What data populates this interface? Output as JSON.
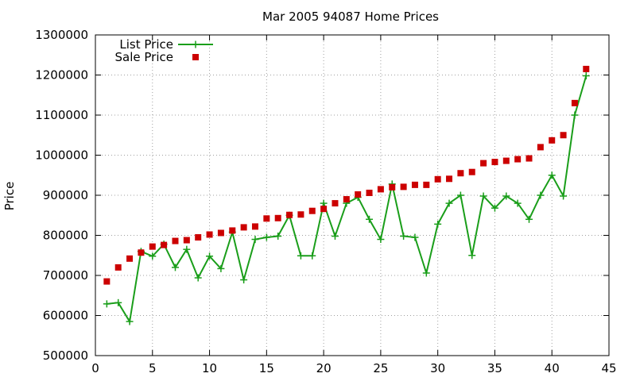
{
  "chart_data": {
    "type": "line",
    "title": "Mar 2005 94087 Home Prices",
    "xlabel": "",
    "ylabel": "Price",
    "xlim": [
      0,
      45
    ],
    "ylim": [
      500000,
      1300000
    ],
    "xticks": [
      0,
      5,
      10,
      15,
      20,
      25,
      30,
      35,
      40,
      45
    ],
    "yticks": [
      500000,
      600000,
      700000,
      800000,
      900000,
      1000000,
      1100000,
      1200000,
      1300000
    ],
    "grid": true,
    "legend_position": "top-left",
    "series": [
      {
        "name": "List Price",
        "style": "linespoints",
        "marker": "plus",
        "color": "#1a9e1a",
        "x": [
          1,
          2,
          3,
          4,
          5,
          6,
          7,
          8,
          9,
          10,
          11,
          12,
          13,
          14,
          15,
          16,
          17,
          18,
          19,
          20,
          21,
          22,
          23,
          24,
          25,
          26,
          27,
          28,
          29,
          30,
          31,
          32,
          33,
          34,
          35,
          36,
          37,
          38,
          39,
          40,
          41,
          42,
          43
        ],
        "y": [
          629000,
          632000,
          585000,
          760000,
          748000,
          778000,
          720000,
          765000,
          694000,
          748000,
          717000,
          808000,
          689000,
          790000,
          795000,
          798000,
          850000,
          749000,
          749000,
          880000,
          798000,
          880000,
          895000,
          840000,
          790000,
          928000,
          798000,
          795000,
          706000,
          828000,
          880000,
          900000,
          750000,
          898000,
          868000,
          898000,
          880000,
          840000,
          900000,
          950000,
          898000,
          1100000,
          1198000
        ]
      },
      {
        "name": "Sale Price",
        "style": "points",
        "marker": "square",
        "color": "#cc0000",
        "x": [
          1,
          2,
          3,
          4,
          5,
          6,
          7,
          8,
          9,
          10,
          11,
          12,
          13,
          14,
          15,
          16,
          17,
          18,
          19,
          20,
          21,
          22,
          23,
          24,
          25,
          26,
          27,
          28,
          29,
          30,
          31,
          32,
          33,
          34,
          35,
          36,
          37,
          38,
          39,
          40,
          41,
          42,
          43
        ],
        "y": [
          685000,
          720000,
          742000,
          757000,
          772000,
          776000,
          786000,
          788000,
          795000,
          802000,
          806000,
          812000,
          820000,
          822000,
          842000,
          843000,
          851000,
          852000,
          861000,
          866000,
          880000,
          890000,
          902000,
          906000,
          915000,
          920000,
          921000,
          926000,
          926000,
          940000,
          941000,
          955000,
          958000,
          980000,
          983000,
          986000,
          990000,
          992000,
          1020000,
          1037000,
          1050000,
          1130000,
          1215000
        ]
      }
    ]
  }
}
